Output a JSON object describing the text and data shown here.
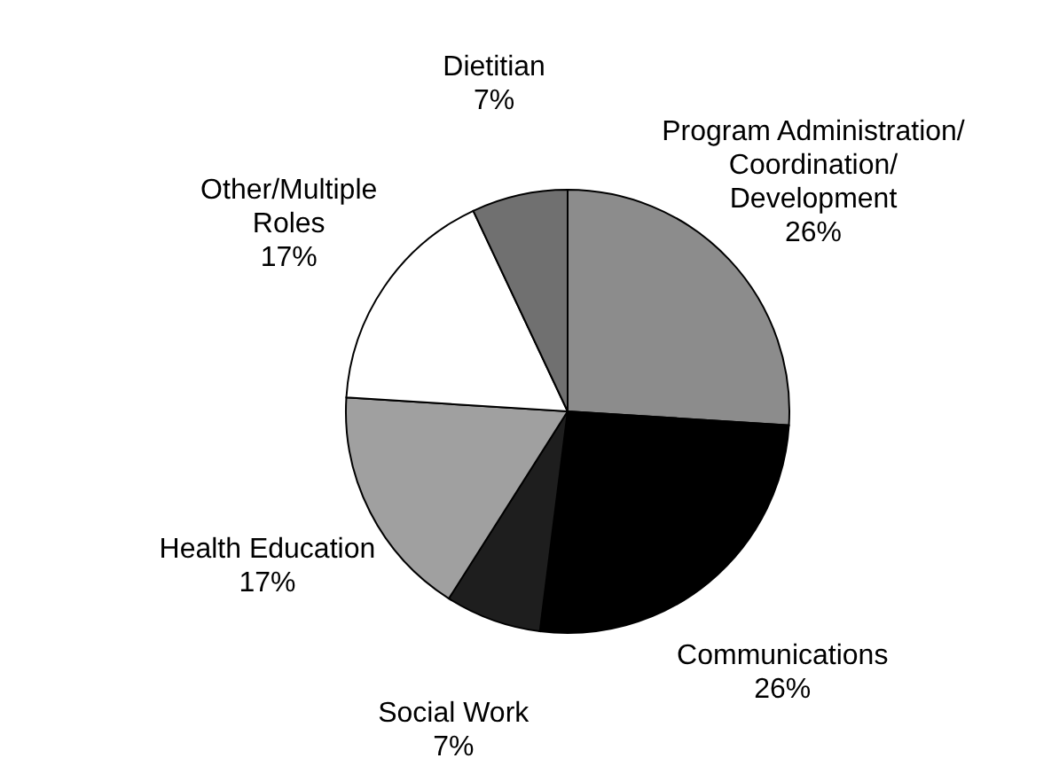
{
  "chart_data": {
    "type": "pie",
    "categories": [
      "Program Administration/\nCoordination/\nDevelopment",
      "Communications",
      "Social Work",
      "Health Education",
      "Other/Multiple\nRoles",
      "Dietitian"
    ],
    "values": [
      26,
      26,
      7,
      17,
      17,
      7
    ],
    "colors": [
      "#8c8c8c",
      "#000000",
      "#1e1e1e",
      "#a0a0a0",
      "#ffffff",
      "#707070"
    ],
    "value_labels": [
      "26%",
      "26%",
      "7%",
      "17%",
      "17%",
      "7%"
    ]
  }
}
